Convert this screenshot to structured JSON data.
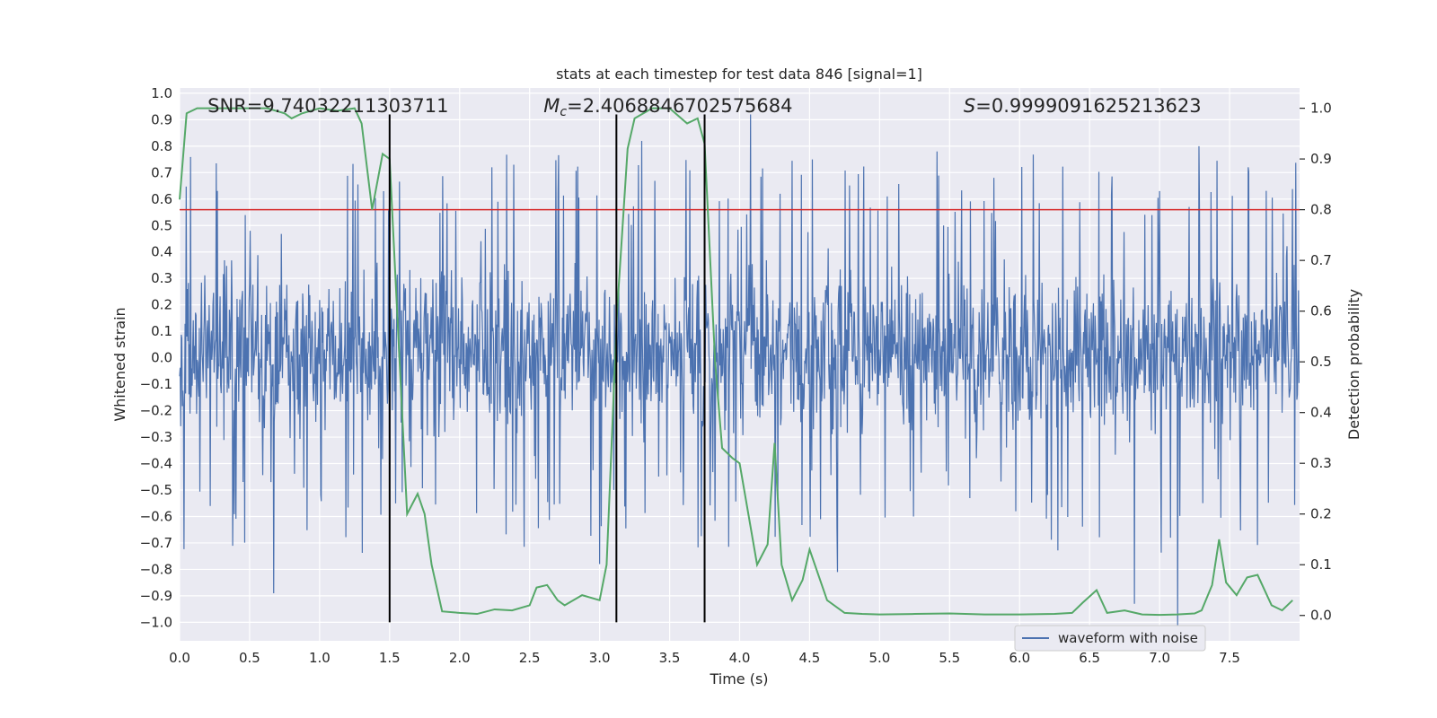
{
  "chart_data": {
    "type": "line",
    "title": "stats at each timestep for test data 846 [signal=1]",
    "xlabel": "Time (s)",
    "ylabel_left": "Whitened strain",
    "ylabel_right": "Detection probability",
    "xlim": [
      0,
      8
    ],
    "ylim_left": [
      -1.07,
      1.02
    ],
    "ylim_right": [
      -0.05,
      1.04
    ],
    "x_ticks": [
      0.0,
      0.5,
      1.0,
      1.5,
      2.0,
      2.5,
      3.0,
      3.5,
      4.0,
      4.5,
      5.0,
      5.5,
      6.0,
      6.5,
      7.0,
      7.5
    ],
    "x_tick_labels": [
      "0.0",
      "0.5",
      "1.0",
      "1.5",
      "2.0",
      "2.5",
      "3.0",
      "3.5",
      "4.0",
      "4.5",
      "5.0",
      "5.5",
      "6.0",
      "6.5",
      "7.0",
      "7.5"
    ],
    "y_left_ticks": [
      1.0,
      0.9,
      0.8,
      0.7,
      0.6,
      0.5,
      0.4,
      0.3,
      0.2,
      0.1,
      0.0,
      -0.1,
      -0.2,
      -0.3,
      -0.4,
      -0.5,
      -0.6,
      -0.7,
      -0.8,
      -0.9,
      -1.0
    ],
    "y_left_tick_labels": [
      "1.0",
      "0.9",
      "0.8",
      "0.7",
      "0.6",
      "0.5",
      "0.4",
      "0.3",
      "0.2",
      "0.1",
      "0.0",
      "−0.1",
      "−0.2",
      "−0.3",
      "−0.4",
      "−0.5",
      "−0.6",
      "−0.7",
      "−0.8",
      "−0.9",
      "−1.0"
    ],
    "y_right_ticks": [
      1.0,
      0.9,
      0.8,
      0.7,
      0.6,
      0.5,
      0.4,
      0.3,
      0.2,
      0.1,
      0.0
    ],
    "y_right_tick_labels": [
      "1.0",
      "0.9",
      "0.8",
      "0.7",
      "0.6",
      "0.5",
      "0.4",
      "0.3",
      "0.2",
      "0.1",
      "0.0"
    ],
    "grid": true,
    "annotations": [
      {
        "text": "SNR=9.74032211303711",
        "x": 0.2
      },
      {
        "text_prefix": "M",
        "text_sub": "c",
        "text_rest": "=2.4068846702575684",
        "x": 2.6
      },
      {
        "text_prefix": "S",
        "text_rest": "=0.9999091625213623",
        "x": 5.6
      }
    ],
    "vertical_lines": [
      1.5,
      3.12,
      3.75
    ],
    "vertical_line_range_left": [
      -1.0,
      0.92
    ],
    "threshold_line": {
      "y_right": 0.8,
      "color": "#d62728"
    },
    "legend": {
      "entries": [
        "waveform with noise"
      ],
      "placement": "lower-right"
    },
    "series": [
      {
        "name": "waveform with noise",
        "axis": "left",
        "color": "#4c72b0",
        "style": "dense noise trace",
        "samples": 2048,
        "typical_range": [
          -0.42,
          0.46
        ],
        "peak_values": [
          {
            "x": 0.67,
            "y": -0.89
          },
          {
            "x": 1.5,
            "y": -0.83
          },
          {
            "x": 2.23,
            "y": 0.72
          },
          {
            "x": 3.0,
            "y": -0.78
          },
          {
            "x": 3.3,
            "y": 0.82
          },
          {
            "x": 4.08,
            "y": 0.92
          },
          {
            "x": 4.52,
            "y": 0.75
          },
          {
            "x": 4.7,
            "y": -0.81
          },
          {
            "x": 6.82,
            "y": -0.93
          },
          {
            "x": 7.13,
            "y": -1.02
          },
          {
            "x": 7.28,
            "y": 0.8
          }
        ]
      },
      {
        "name": "detection probability",
        "axis": "right",
        "color": "#55a868",
        "x": [
          0.0,
          0.05,
          0.125,
          0.25,
          0.375,
          0.5,
          0.625,
          0.75,
          0.8,
          0.875,
          1.0,
          1.125,
          1.25,
          1.3,
          1.375,
          1.45,
          1.5,
          1.625,
          1.7,
          1.75,
          1.8,
          1.875,
          2.0,
          2.125,
          2.25,
          2.375,
          2.5,
          2.55,
          2.625,
          2.7,
          2.75,
          2.875,
          3.0,
          3.05,
          3.125,
          3.2,
          3.25,
          3.375,
          3.45,
          3.5,
          3.625,
          3.7,
          3.75,
          3.825,
          3.875,
          3.95,
          4.0,
          4.125,
          4.2,
          4.25,
          4.3,
          4.375,
          4.45,
          4.5,
          4.625,
          4.75,
          4.875,
          5.0,
          5.25,
          5.5,
          5.75,
          6.0,
          6.25,
          6.375,
          6.45,
          6.55,
          6.625,
          6.75,
          6.875,
          7.0,
          7.125,
          7.25,
          7.3,
          7.375,
          7.425,
          7.475,
          7.55,
          7.625,
          7.7,
          7.8,
          7.875,
          7.95
        ],
        "y": [
          0.82,
          0.99,
          1.0,
          1.0,
          1.0,
          1.0,
          1.0,
          0.99,
          0.98,
          0.99,
          1.0,
          0.995,
          1.0,
          0.97,
          0.8,
          0.91,
          0.9,
          0.2,
          0.24,
          0.2,
          0.1,
          0.008,
          0.005,
          0.003,
          0.012,
          0.01,
          0.02,
          0.055,
          0.06,
          0.03,
          0.02,
          0.04,
          0.03,
          0.1,
          0.6,
          0.92,
          0.98,
          1.0,
          1.0,
          1.0,
          0.97,
          0.98,
          0.93,
          0.5,
          0.33,
          0.31,
          0.3,
          0.1,
          0.14,
          0.34,
          0.1,
          0.03,
          0.07,
          0.13,
          0.03,
          0.005,
          0.003,
          0.002,
          0.003,
          0.004,
          0.002,
          0.002,
          0.003,
          0.005,
          0.025,
          0.05,
          0.005,
          0.01,
          0.002,
          0.001,
          0.002,
          0.004,
          0.01,
          0.06,
          0.15,
          0.065,
          0.04,
          0.075,
          0.08,
          0.02,
          0.01,
          0.03
        ]
      }
    ]
  }
}
